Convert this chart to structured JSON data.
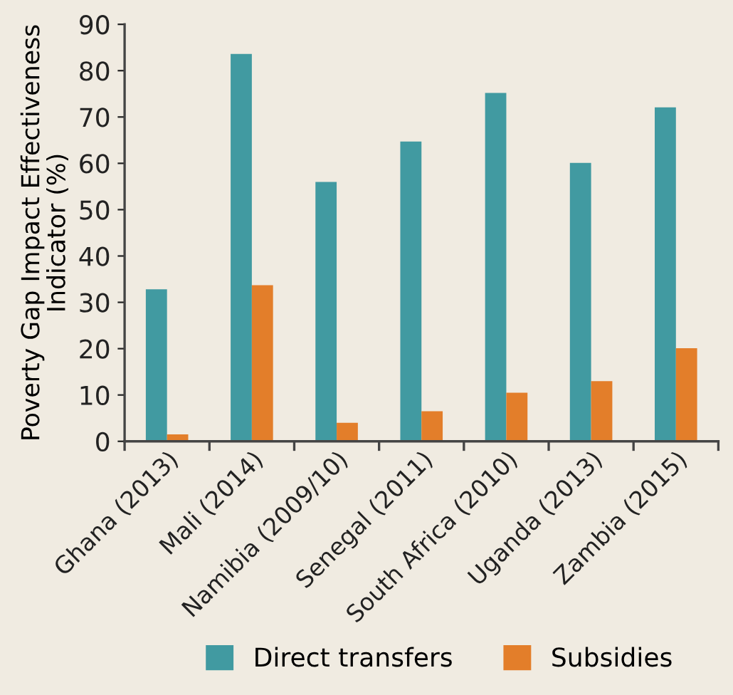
{
  "chart_data": {
    "type": "bar",
    "ylabel": "Poverty Gap Impact Effectiveness Indicator (%)",
    "categories": [
      "Ghana (2013)",
      "Mali (2014)",
      "Namibia (2009/10)",
      "Senegal (2011)",
      "South Africa (2010)",
      "Uganda (2013)",
      "Zambia (2015)"
    ],
    "series": [
      {
        "name": "Direct transfers",
        "color": "#419aa1",
        "values": [
          32.8,
          83.6,
          56.0,
          64.7,
          75.2,
          60.1,
          72.1
        ]
      },
      {
        "name": "Subsidies",
        "color": "#e37e2a",
        "values": [
          1.5,
          33.7,
          4.0,
          6.5,
          10.5,
          13.0,
          20.1
        ]
      }
    ],
    "ylim": [
      0,
      90
    ],
    "yticks": [
      0,
      10,
      20,
      30,
      40,
      50,
      60,
      70,
      80,
      90
    ],
    "grid": false,
    "legend": "bottom"
  }
}
